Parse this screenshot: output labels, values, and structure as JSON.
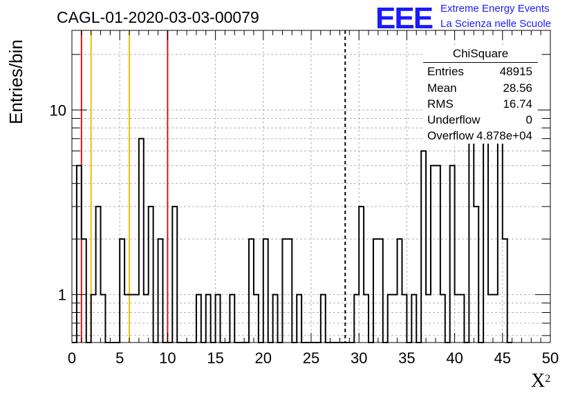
{
  "title": "CAGL-01-2020-03-03-00079",
  "logo": {
    "mark": "EEE",
    "line1": "Extreme Energy Events",
    "line2": "La Scienza nelle Scuole",
    "color": "#1a1aff"
  },
  "stats_box": {
    "title": "ChiSquare",
    "rows": [
      {
        "name": "Entries",
        "value": "48915"
      },
      {
        "name": "Mean",
        "value": "28.56"
      },
      {
        "name": "RMS",
        "value": "16.74"
      },
      {
        "name": "Underflow",
        "value": "0"
      },
      {
        "name": "Overflow",
        "value": "4.878e+04"
      }
    ]
  },
  "chart_data": {
    "type": "histogram",
    "title": "CAGL-01-2020-03-03-00079",
    "xlabel": "X",
    "xlabel_superscript": "2",
    "ylabel": "Entries/bin",
    "xlim": [
      0,
      50
    ],
    "ylim": [
      0.55,
      27
    ],
    "yscale": "log",
    "grid": true,
    "bin_width": 0.5,
    "bins": [
      {
        "x": 0.0,
        "y": 0
      },
      {
        "x": 0.5,
        "y": 5
      },
      {
        "x": 1.0,
        "y": 2
      },
      {
        "x": 1.5,
        "y": 0
      },
      {
        "x": 2.0,
        "y": 1
      },
      {
        "x": 2.5,
        "y": 3
      },
      {
        "x": 3.0,
        "y": 1
      },
      {
        "x": 3.5,
        "y": 0
      },
      {
        "x": 4.0,
        "y": 0
      },
      {
        "x": 4.5,
        "y": 0
      },
      {
        "x": 5.0,
        "y": 2
      },
      {
        "x": 5.5,
        "y": 1
      },
      {
        "x": 6.0,
        "y": 1
      },
      {
        "x": 6.5,
        "y": 1
      },
      {
        "x": 7.0,
        "y": 7
      },
      {
        "x": 7.5,
        "y": 1
      },
      {
        "x": 8.0,
        "y": 3
      },
      {
        "x": 8.5,
        "y": 0
      },
      {
        "x": 9.0,
        "y": 2
      },
      {
        "x": 9.5,
        "y": 0
      },
      {
        "x": 10.0,
        "y": 0
      },
      {
        "x": 10.5,
        "y": 3
      },
      {
        "x": 11.0,
        "y": 0
      },
      {
        "x": 11.5,
        "y": 0
      },
      {
        "x": 12.0,
        "y": 0
      },
      {
        "x": 12.5,
        "y": 0
      },
      {
        "x": 13.0,
        "y": 1
      },
      {
        "x": 13.5,
        "y": 0
      },
      {
        "x": 14.0,
        "y": 1
      },
      {
        "x": 14.5,
        "y": 0
      },
      {
        "x": 15.0,
        "y": 1
      },
      {
        "x": 15.5,
        "y": 0
      },
      {
        "x": 16.0,
        "y": 0
      },
      {
        "x": 16.5,
        "y": 1
      },
      {
        "x": 17.0,
        "y": 0
      },
      {
        "x": 17.5,
        "y": 0
      },
      {
        "x": 18.0,
        "y": 0
      },
      {
        "x": 18.5,
        "y": 2
      },
      {
        "x": 19.0,
        "y": 1
      },
      {
        "x": 19.5,
        "y": 0
      },
      {
        "x": 20.0,
        "y": 2
      },
      {
        "x": 20.5,
        "y": 0
      },
      {
        "x": 21.0,
        "y": 1
      },
      {
        "x": 21.5,
        "y": 0
      },
      {
        "x": 22.0,
        "y": 2
      },
      {
        "x": 22.5,
        "y": 2
      },
      {
        "x": 23.0,
        "y": 0
      },
      {
        "x": 23.5,
        "y": 1
      },
      {
        "x": 24.0,
        "y": 0
      },
      {
        "x": 24.5,
        "y": 0
      },
      {
        "x": 25.0,
        "y": 0
      },
      {
        "x": 25.5,
        "y": 0
      },
      {
        "x": 26.0,
        "y": 1
      },
      {
        "x": 26.5,
        "y": 0
      },
      {
        "x": 27.0,
        "y": 0
      },
      {
        "x": 27.5,
        "y": 0
      },
      {
        "x": 28.0,
        "y": 0
      },
      {
        "x": 28.5,
        "y": 0
      },
      {
        "x": 29.0,
        "y": 0
      },
      {
        "x": 29.5,
        "y": 1
      },
      {
        "x": 30.0,
        "y": 3
      },
      {
        "x": 30.5,
        "y": 1
      },
      {
        "x": 31.0,
        "y": 0
      },
      {
        "x": 31.5,
        "y": 2
      },
      {
        "x": 32.0,
        "y": 2
      },
      {
        "x": 32.5,
        "y": 0
      },
      {
        "x": 33.0,
        "y": 1
      },
      {
        "x": 33.5,
        "y": 1
      },
      {
        "x": 34.0,
        "y": 2
      },
      {
        "x": 34.5,
        "y": 1
      },
      {
        "x": 35.0,
        "y": 0
      },
      {
        "x": 35.5,
        "y": 1
      },
      {
        "x": 36.0,
        "y": 0
      },
      {
        "x": 36.5,
        "y": 6
      },
      {
        "x": 37.0,
        "y": 1
      },
      {
        "x": 37.5,
        "y": 5
      },
      {
        "x": 38.0,
        "y": 5
      },
      {
        "x": 38.5,
        "y": 1
      },
      {
        "x": 39.0,
        "y": 0
      },
      {
        "x": 39.5,
        "y": 5
      },
      {
        "x": 40.0,
        "y": 1
      },
      {
        "x": 40.5,
        "y": 1
      },
      {
        "x": 41.0,
        "y": 0
      },
      {
        "x": 41.5,
        "y": 7
      },
      {
        "x": 42.0,
        "y": 3
      },
      {
        "x": 42.5,
        "y": 0
      },
      {
        "x": 43.0,
        "y": 15
      },
      {
        "x": 43.5,
        "y": 1
      },
      {
        "x": 44.0,
        "y": 1
      },
      {
        "x": 44.5,
        "y": 9
      },
      {
        "x": 45.0,
        "y": 2
      },
      {
        "x": 45.5,
        "y": 0
      }
    ],
    "vlines": [
      {
        "x": 1.0,
        "color": "#e01010",
        "style": "solid"
      },
      {
        "x": 2.0,
        "color": "#f0c000",
        "style": "solid"
      },
      {
        "x": 6.0,
        "color": "#f0c000",
        "style": "solid"
      },
      {
        "x": 10.0,
        "color": "#e01010",
        "style": "solid"
      },
      {
        "x": 28.56,
        "color": "#000000",
        "style": "dashed"
      }
    ],
    "xticks": [
      "0",
      "5",
      "10",
      "15",
      "20",
      "25",
      "30",
      "35",
      "40",
      "45",
      "50"
    ],
    "yticks": [
      {
        "value": 1,
        "label": "1"
      },
      {
        "value": 10,
        "label": "10"
      }
    ]
  }
}
